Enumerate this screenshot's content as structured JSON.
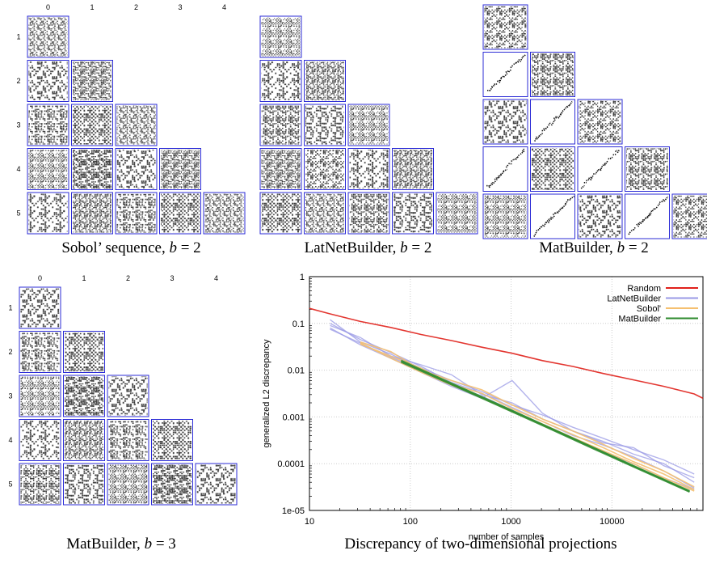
{
  "colors": {
    "frame": "#2b2bd6",
    "pattern_dark": "#3a3a3a",
    "random": "#e0201a",
    "latnet": "#9a9ae6",
    "sobol": "#f5c070",
    "matbuilder": "#2e8b2e",
    "grid": "#cccccc"
  },
  "panels": [
    {
      "id": "sobol-b2",
      "caption_prefix": "Sobol’ sequence, ",
      "caption_math": "b",
      "caption_suffix": " = 2",
      "col_labels": [
        "0",
        "1",
        "2",
        "3",
        "4"
      ],
      "row_labels": [
        "1",
        "2",
        "3",
        "4",
        "5"
      ]
    },
    {
      "id": "latnet-b2",
      "caption_prefix": "LatNetBuilder, ",
      "caption_math": "b",
      "caption_suffix": " = 2",
      "col_labels": [],
      "row_labels": []
    },
    {
      "id": "matbuilder-b2",
      "caption_prefix": "MatBuilder, ",
      "caption_math": "b",
      "caption_suffix": " = 2",
      "col_labels": [],
      "row_labels": []
    },
    {
      "id": "matbuilder-b3",
      "caption_prefix": "MatBuilder, ",
      "caption_math": "b",
      "caption_suffix": " = 3",
      "col_labels": [
        "0",
        "1",
        "2",
        "3",
        "4"
      ],
      "row_labels": [
        "1",
        "2",
        "3",
        "4",
        "5"
      ]
    }
  ],
  "chart_caption": "Discrepancy of two-dimensional projections",
  "chart_data": {
    "type": "line",
    "title": "",
    "xlabel": "number of samples",
    "ylabel": "generalized L2 discrepancy",
    "xscale": "log",
    "yscale": "log",
    "xlim": [
      10,
      80000
    ],
    "ylim": [
      1e-05,
      1
    ],
    "xticks": [
      10,
      100,
      1000,
      10000
    ],
    "xtick_labels": [
      "10",
      "100",
      "1000",
      "10000"
    ],
    "yticks": [
      1,
      0.1,
      0.01,
      0.001,
      0.0001,
      1e-05
    ],
    "ytick_labels": [
      "1",
      "0.1",
      "0.01",
      "0.001",
      "0.0001",
      "1e-05"
    ],
    "grid": true,
    "legend_position": "top-right",
    "series": [
      {
        "name": "Random",
        "color": "#e0201a",
        "lines": [
          {
            "x": [
              10,
              16,
              32,
              64,
              128,
              256,
              512,
              1024,
              2048,
              4096,
              8192,
              16384,
              32768,
              65536,
              80000
            ],
            "y": [
              0.21,
              0.16,
              0.11,
              0.082,
              0.058,
              0.043,
              0.031,
              0.023,
              0.016,
              0.012,
              0.0085,
              0.0062,
              0.0045,
              0.0031,
              0.0025
            ]
          }
        ]
      },
      {
        "name": "LatNetBuilder",
        "color": "#9a9ae6",
        "lines": [
          {
            "x": [
              16,
              32,
              64,
              128,
              256,
              512,
              1024,
              2048,
              4096,
              8192,
              16384,
              32768,
              65536
            ],
            "y": [
              0.12,
              0.04,
              0.022,
              0.011,
              0.006,
              0.0035,
              0.0018,
              0.0011,
              0.0006,
              0.00035,
              0.0002,
              0.00012,
              6e-05
            ]
          },
          {
            "x": [
              16,
              32,
              64,
              128,
              256,
              512,
              1024,
              2048,
              4096,
              8192,
              16384,
              32768,
              65536
            ],
            "y": [
              0.09,
              0.05,
              0.02,
              0.013,
              0.008,
              0.003,
              0.002,
              0.0009,
              0.0005,
              0.00028,
              0.00022,
              9e-05,
              5e-05
            ]
          },
          {
            "x": [
              16,
              32,
              64,
              128,
              256,
              512,
              1024,
              2048,
              4096,
              8192,
              16384,
              32768,
              65536
            ],
            "y": [
              0.08,
              0.035,
              0.018,
              0.009,
              0.0045,
              0.0025,
              0.006,
              0.0012,
              0.0005,
              0.0003,
              0.00016,
              0.0001,
              4e-05
            ]
          },
          {
            "x": [
              16,
              32,
              64,
              128,
              256,
              512,
              1024,
              2048,
              4096,
              8192,
              16384,
              32768,
              65536
            ],
            "y": [
              0.1,
              0.045,
              0.024,
              0.012,
              0.0055,
              0.0032,
              0.0016,
              0.0008,
              0.0004,
              0.00025,
              0.00014,
              7e-05,
              3e-05
            ]
          },
          {
            "x": [
              16,
              32,
              64,
              128,
              256,
              512,
              1024,
              2048,
              4096,
              8192,
              16384,
              32768,
              65536
            ],
            "y": [
              0.075,
              0.038,
              0.019,
              0.01,
              0.005,
              0.0028,
              0.0014,
              0.0007,
              0.00035,
              0.00018,
              0.0001,
              5e-05,
              2.8e-05
            ]
          }
        ]
      },
      {
        "name": "Sobol'",
        "color": "#f5c070",
        "lines": [
          {
            "x": [
              32,
              64,
              128,
              256,
              512,
              1024,
              2048,
              4096,
              8192,
              16384,
              32768,
              65536
            ],
            "y": [
              0.04,
              0.025,
              0.01,
              0.006,
              0.0038,
              0.0018,
              0.0009,
              0.0005,
              0.00026,
              0.00013,
              7e-05,
              3.2e-05
            ]
          },
          {
            "x": [
              32,
              64,
              128,
              256,
              512,
              1024,
              2048,
              4096,
              8192,
              16384,
              32768,
              65536
            ],
            "y": [
              0.036,
              0.02,
              0.011,
              0.005,
              0.0032,
              0.0015,
              0.0008,
              0.00042,
              0.00022,
              0.00011,
              6e-05,
              2.8e-05
            ]
          },
          {
            "x": [
              32,
              64,
              128,
              256,
              512,
              1024,
              2048,
              4096,
              8192,
              16384,
              32768,
              65536
            ],
            "y": [
              0.038,
              0.018,
              0.009,
              0.0048,
              0.0026,
              0.0013,
              0.0007,
              0.00036,
              0.00019,
              0.0001,
              5e-05,
              2.6e-05
            ]
          }
        ]
      },
      {
        "name": "MatBuilder",
        "color": "#2e8b2e",
        "lines": [
          {
            "x": [
              81,
              243,
              729,
              2187,
              6561,
              19683,
              59049
            ],
            "y": [
              0.015,
              0.0052,
              0.0018,
              0.00062,
              0.00021,
              7.2e-05,
              2.5e-05
            ]
          },
          {
            "x": [
              81,
              243,
              729,
              2187,
              6561,
              19683,
              59049
            ],
            "y": [
              0.016,
              0.0055,
              0.0019,
              0.00065,
              0.00022,
              7.5e-05,
              2.6e-05
            ]
          }
        ]
      }
    ]
  }
}
